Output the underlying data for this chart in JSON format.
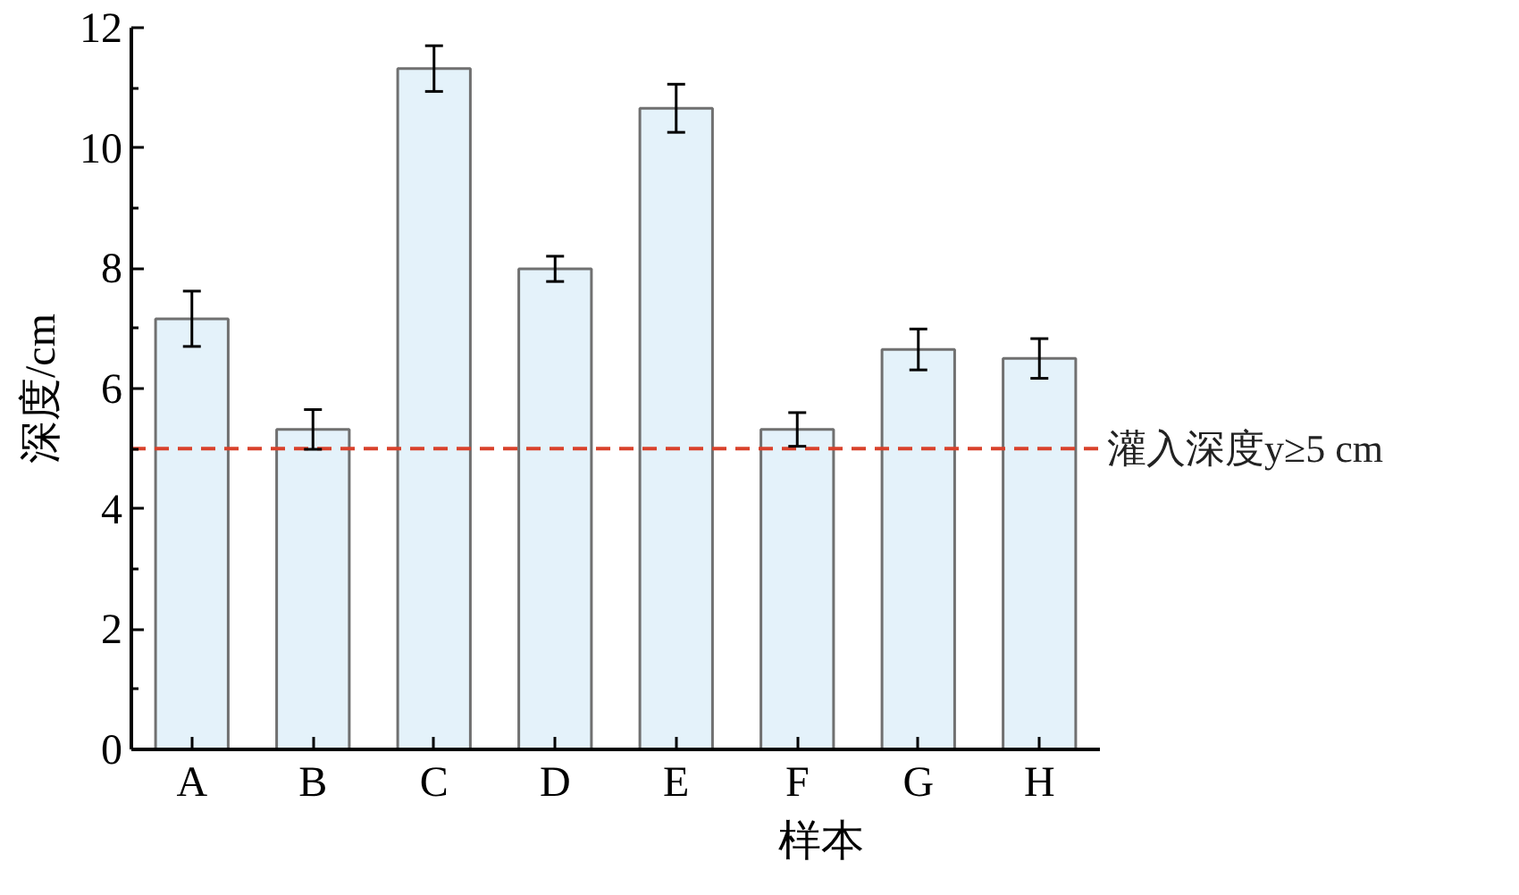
{
  "chart_data": {
    "type": "bar",
    "xlabel": "样本",
    "ylabel": "深度/cm",
    "categories": [
      "A",
      "B",
      "C",
      "D",
      "E",
      "F",
      "G",
      "H"
    ],
    "values": [
      7.16,
      5.32,
      11.32,
      7.99,
      10.66,
      5.32,
      6.65,
      6.5
    ],
    "errors": [
      0.46,
      0.33,
      0.38,
      0.21,
      0.4,
      0.28,
      0.34,
      0.33
    ],
    "color": "#e4f2fa",
    "ylim": [
      0,
      12
    ],
    "yticks": [
      0,
      {
        "value": 1,
        "label": null
      },
      2,
      {
        "value": 3,
        "label": null
      },
      4,
      {
        "value": 5,
        "label": null
      },
      6,
      {
        "value": 7,
        "label": null
      },
      8,
      {
        "value": 9,
        "label": null
      },
      10,
      {
        "value": 11,
        "label": null
      },
      12
    ],
    "ref_lines": [
      {
        "axis": "y",
        "value": 5,
        "label": "灌入深度y≥5 cm",
        "color": "#d9412b",
        "line_style": "dashed"
      }
    ],
    "grid": false
  }
}
